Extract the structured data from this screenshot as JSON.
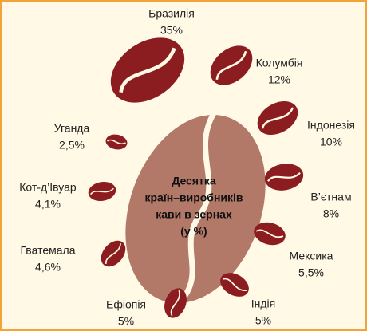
{
  "chart_data": {
    "type": "beans",
    "title_lines": [
      "Десятка",
      "країн–виробників",
      "кави в зернах",
      "(у %)"
    ],
    "categories": [
      "Бразилія",
      "Колумбія",
      "Індонезія",
      "В’єтнам",
      "Мексика",
      "Індія",
      "Ефіопія",
      "Гватемала",
      "Кот-д’Івуар",
      "Уганда"
    ],
    "values": [
      35,
      12,
      10,
      8,
      5.5,
      5,
      5,
      4.6,
      4.1,
      2.5
    ],
    "value_labels": [
      "35%",
      "12%",
      "10%",
      "8%",
      "5,5%",
      "5%",
      "5%",
      "4,6%",
      "4,1%",
      "2,5%"
    ],
    "color": "#8b1c1f",
    "center_color": "#b27868"
  }
}
